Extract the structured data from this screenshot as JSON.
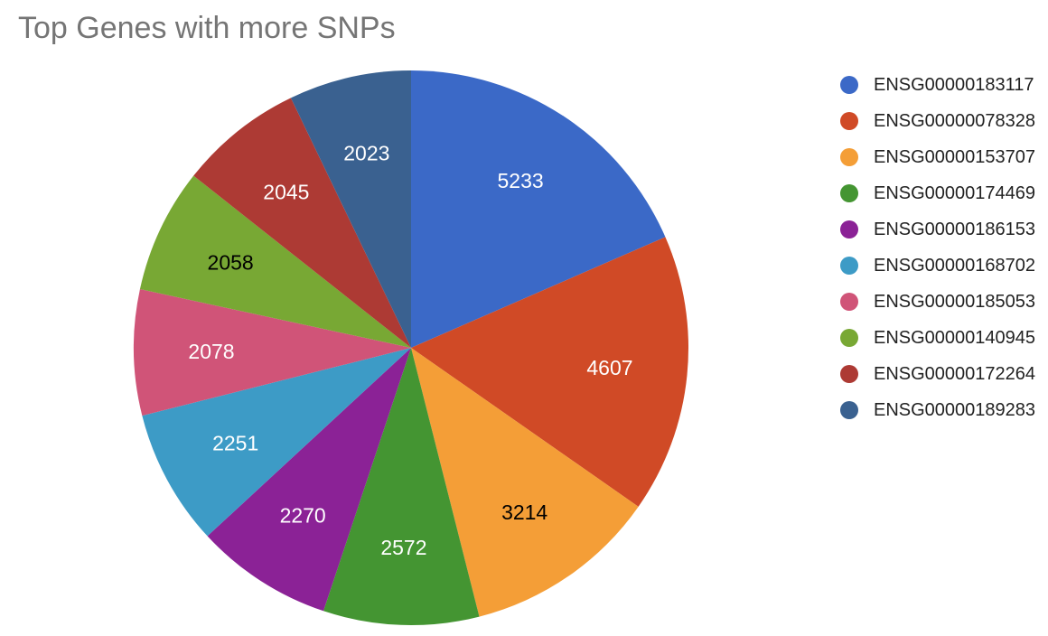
{
  "chart_data": {
    "type": "pie",
    "title": "Top Genes with more SNPs",
    "labels": [
      "ENSG00000183117",
      "ENSG00000078328",
      "ENSG00000153707",
      "ENSG00000174469",
      "ENSG00000186153",
      "ENSG00000168702",
      "ENSG00000185053",
      "ENSG00000140945",
      "ENSG00000172264",
      "ENSG00000189283"
    ],
    "values": [
      5233,
      4607,
      3214,
      2572,
      2270,
      2251,
      2078,
      2058,
      2045,
      2023
    ],
    "colors": [
      "#3b69c7",
      "#d04a26",
      "#f49e37",
      "#449532",
      "#8b2296",
      "#3d9bc6",
      "#d05478",
      "#78a834",
      "#ad3a34",
      "#3a6190"
    ],
    "label_colors": [
      "#ffffff",
      "#ffffff",
      "#000000",
      "#ffffff",
      "#ffffff",
      "#ffffff",
      "#ffffff",
      "#000000",
      "#ffffff",
      "#ffffff"
    ],
    "legend_position": "right",
    "start_angle_deg": 0,
    "direction": "clockwise"
  }
}
